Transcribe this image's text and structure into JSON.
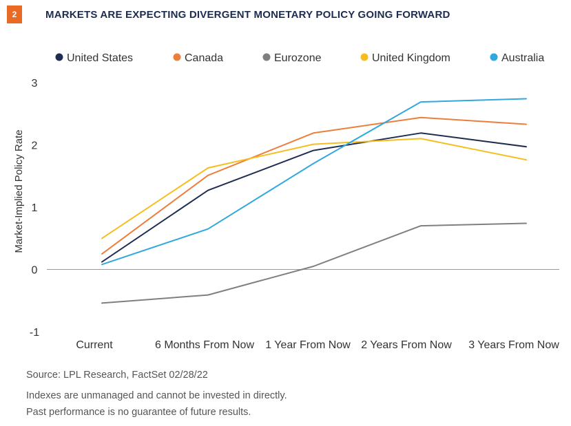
{
  "header": {
    "badge": "2",
    "title": "MARKETS ARE EXPECTING DIVERGENT MONETARY POLICY GOING FORWARD"
  },
  "footer": {
    "source": "Source: LPL Research, FactSet  02/28/22",
    "note1": "Indexes are unmanaged and cannot be invested in directly.",
    "note2": "Past performance is no guarantee of future results."
  },
  "colors": {
    "badge": "#e96a24",
    "title": "#1d2b4f",
    "zero_line": "#999999"
  },
  "chart_data": {
    "type": "line",
    "title": "MARKETS ARE EXPECTING DIVERGENT MONETARY POLICY GOING FORWARD",
    "xlabel": "",
    "ylabel": "Market-Implied Policy Rate",
    "categories": [
      "Current",
      "6 Months From Now",
      "1 Year From Now",
      "2 Years From Now",
      "3 Years From Now"
    ],
    "ylim": [
      -1,
      3
    ],
    "yticks": [
      -1,
      0,
      1,
      2,
      3
    ],
    "grid": false,
    "legend_position": "top",
    "series": [
      {
        "name": "United States",
        "color": "#1f2d52",
        "values": [
          0.12,
          1.27,
          1.91,
          2.19,
          1.97
        ]
      },
      {
        "name": "Canada",
        "color": "#ed7d3b",
        "values": [
          0.25,
          1.51,
          2.19,
          2.44,
          2.33
        ]
      },
      {
        "name": "Eurozone",
        "color": "#7f7f7f",
        "values": [
          -0.54,
          -0.41,
          0.05,
          0.7,
          0.74
        ]
      },
      {
        "name": "United Kingdom",
        "color": "#f5be1e",
        "values": [
          0.5,
          1.63,
          2.01,
          2.1,
          1.76
        ]
      },
      {
        "name": "Australia",
        "color": "#2fa7df",
        "values": [
          0.08,
          0.65,
          1.7,
          2.69,
          2.74
        ]
      }
    ]
  }
}
